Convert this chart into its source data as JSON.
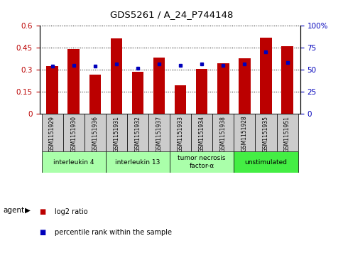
{
  "title": "GDS5261 / A_24_P744148",
  "samples": [
    "GSM1151929",
    "GSM1151930",
    "GSM1151936",
    "GSM1151931",
    "GSM1151932",
    "GSM1151937",
    "GSM1151933",
    "GSM1151934",
    "GSM1151938",
    "GSM1151928",
    "GSM1151935",
    "GSM1151951"
  ],
  "log2_ratio": [
    0.325,
    0.44,
    0.265,
    0.515,
    0.285,
    0.385,
    0.195,
    0.305,
    0.345,
    0.38,
    0.52,
    0.46
  ],
  "percentile_rank": [
    54,
    55,
    54,
    57,
    52,
    57,
    55,
    57,
    55,
    57,
    70,
    58
  ],
  "agents": [
    {
      "label": "interleukin 4",
      "start": 0,
      "end": 3,
      "color": "#aaffaa"
    },
    {
      "label": "interleukin 13",
      "start": 3,
      "end": 6,
      "color": "#aaffaa"
    },
    {
      "label": "tumor necrosis\nfactor-α",
      "start": 6,
      "end": 9,
      "color": "#aaffaa"
    },
    {
      "label": "unstimulated",
      "start": 9,
      "end": 12,
      "color": "#44ee44"
    }
  ],
  "ylim_left": [
    0,
    0.6
  ],
  "yticks_left": [
    0,
    0.15,
    0.3,
    0.45,
    0.6
  ],
  "ylim_right": [
    0,
    100
  ],
  "yticks_right": [
    0,
    25,
    50,
    75,
    100
  ],
  "bar_color": "#bb0000",
  "dot_color": "#0000bb",
  "bar_width": 0.55,
  "background_color": "#ffffff",
  "sample_box_color": "#cccccc",
  "legend_items": [
    {
      "label": "log2 ratio",
      "color": "#bb0000"
    },
    {
      "label": "percentile rank within the sample",
      "color": "#0000bb"
    }
  ]
}
